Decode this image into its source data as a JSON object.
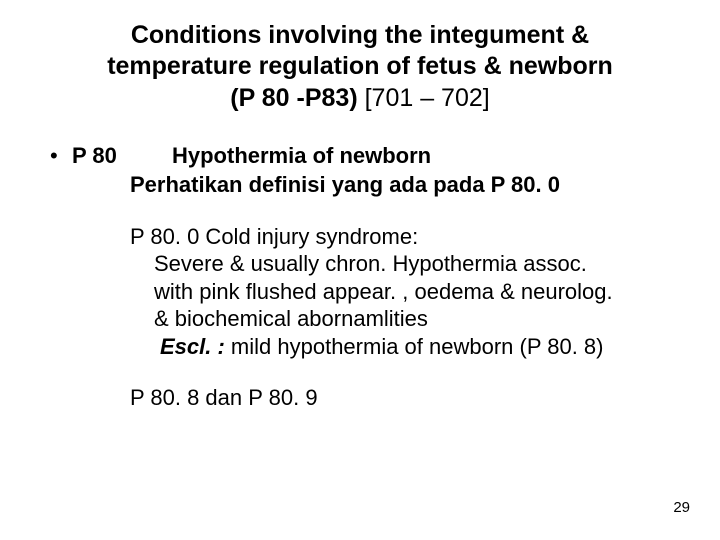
{
  "title": {
    "line1": "Conditions involving the integument &",
    "line2": "temperature regulation of fetus & newborn",
    "code": "(P 80 -P83)",
    "range": "[701 – 702]"
  },
  "bullet": {
    "marker": "•",
    "code": "P 80",
    "heading": "Hypothermia of newborn",
    "subheading": "Perhatikan definisi yang ada pada P 80. 0"
  },
  "detail": {
    "head": "P 80. 0  Cold injury  syndrome:",
    "l1": "Severe & usually chron. Hypothermia assoc.",
    "l2": "with pink flushed appear. , oedema & neurolog.",
    "l3": "& biochemical abornamlities",
    "excl_label": "Escl. :",
    "excl_text": "   mild hypothermia of newborn (P 80. 8)"
  },
  "footer": "P 80. 8  dan  P 80. 9",
  "page": "29"
}
